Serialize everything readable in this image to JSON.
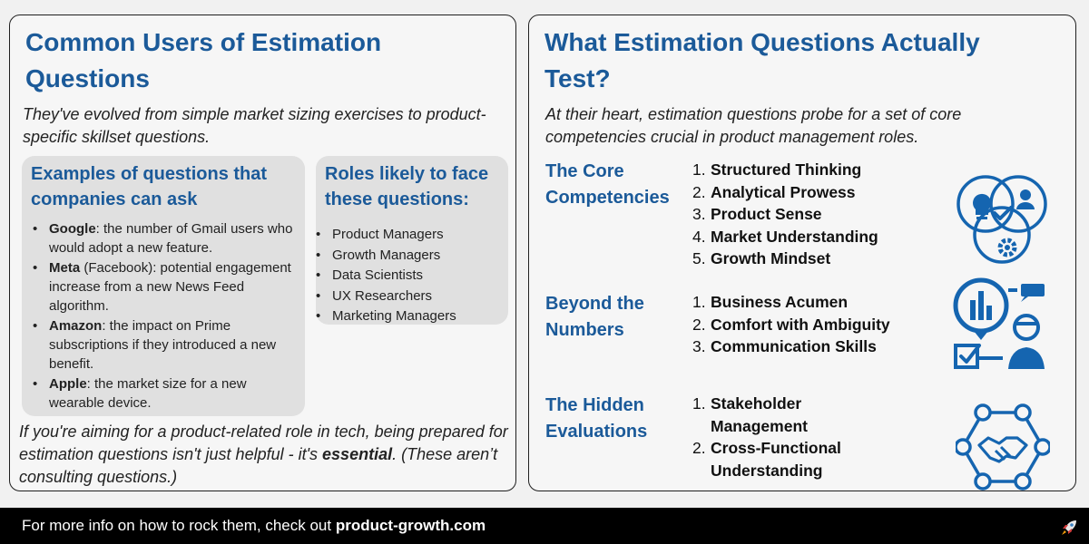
{
  "left": {
    "title": "Common Users of Estimation Questions",
    "subtitle": "They've evolved from simple market sizing exercises to product-specific skillset questions.",
    "examples": {
      "title": "Examples of questions that companies can ask",
      "items": [
        {
          "company": "Google",
          "text": ": the number of Gmail users who would adopt a new feature."
        },
        {
          "company": "Meta",
          "text": " (Facebook): potential engagement increase from a new News Feed algorithm."
        },
        {
          "company": "Amazon",
          "text": ": the impact on Prime subscriptions if they introduced a new benefit."
        },
        {
          "company": "Apple",
          "text": ": the market size for a new wearable device."
        }
      ]
    },
    "roles": {
      "title": "Roles likely to face these questions:",
      "items": [
        "Product Managers",
        "Growth Managers",
        "Data Scientists",
        "UX Researchers",
        "Marketing Managers"
      ]
    },
    "closing": {
      "before": "If you're aiming for a product-related role in tech, being prepared for estimation questions isn't just helpful - it's ",
      "emphasis": "essential",
      "after": ". (These aren’t consulting questions.)"
    }
  },
  "right": {
    "title": "What Estimation Questions Actually Test?",
    "subtitle": "At their heart, estimation questions probe for a set of core competencies crucial in product management roles.",
    "sections": [
      {
        "title": "The Core Competencies",
        "icon": "venn-competencies-icon",
        "items": [
          "Structured Thinking",
          "Analytical Prowess",
          "Product Sense",
          "Market Understanding",
          "Growth Mindset"
        ]
      },
      {
        "title": "Beyond the Numbers",
        "icon": "analyst-chart-icon",
        "items": [
          "Business Acumen",
          "Comfort with Ambiguity",
          "Communication Skills"
        ]
      },
      {
        "title": "The Hidden Evaluations",
        "icon": "handshake-network-icon",
        "items": [
          "Stakeholder Management",
          "Cross-Functional Understanding"
        ]
      }
    ]
  },
  "footer": {
    "text": "For more info on how to rock them, check out ",
    "link": "product-growth.com",
    "icon": "rocket-icon"
  },
  "colors": {
    "heading": "#1b5a99",
    "icon": "#1565b0",
    "box": "#e0e0e0",
    "footer_bg": "#000000"
  }
}
